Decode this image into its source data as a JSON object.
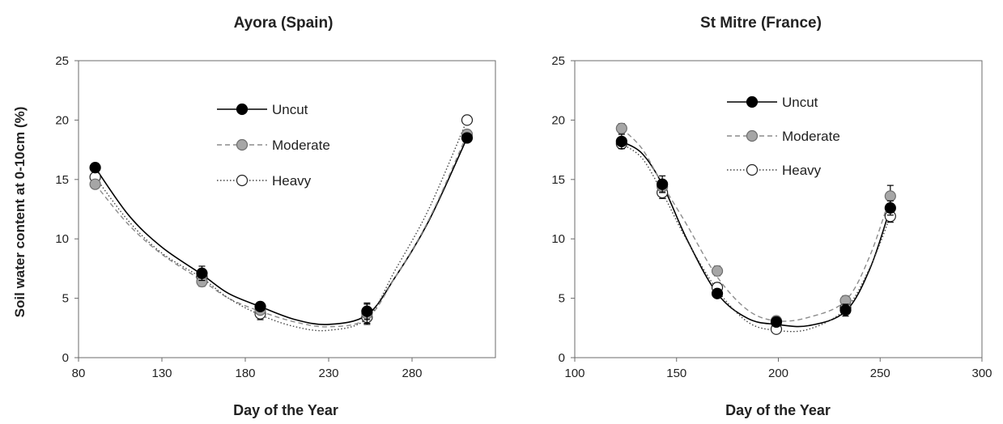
{
  "chart_data": [
    {
      "type": "line",
      "title": "Ayora (Spain)",
      "xlabel": "Day of the Year",
      "ylabel": "Soil water  content  at 0-10cm  (%)",
      "xlim": [
        80,
        330
      ],
      "ylim": [
        0,
        25
      ],
      "xticks": [
        80,
        130,
        180,
        230,
        280
      ],
      "yticks": [
        0,
        5,
        10,
        15,
        20,
        25
      ],
      "legend": "inside upper-center",
      "x": [
        90,
        154,
        189,
        253,
        313
      ],
      "series": [
        {
          "name": "Uncut",
          "style": "solid",
          "marker": "black-filled",
          "values": [
            16.0,
            7.1,
            4.3,
            3.9,
            18.5
          ],
          "error": [
            0.3,
            0.6,
            0.3,
            0.7,
            0.3
          ]
        },
        {
          "name": "Moderate",
          "style": "dashed",
          "marker": "grey-filled",
          "values": [
            14.6,
            6.4,
            4.0,
            3.7,
            18.8
          ],
          "error": [
            0.3,
            0.4,
            0.3,
            0.8,
            0.3
          ]
        },
        {
          "name": "Heavy",
          "style": "dotted",
          "marker": "white-open",
          "values": [
            15.2,
            6.8,
            3.7,
            3.4,
            20.0
          ],
          "error": [
            0.3,
            0.4,
            0.5,
            0.6,
            0.3
          ]
        }
      ],
      "curves": {
        "Uncut": [
          [
            90,
            16.0
          ],
          [
            110,
            12.0
          ],
          [
            130,
            9.3
          ],
          [
            154,
            7.0
          ],
          [
            170,
            5.4
          ],
          [
            189,
            4.3
          ],
          [
            210,
            3.2
          ],
          [
            230,
            2.8
          ],
          [
            253,
            3.6
          ],
          [
            270,
            6.8
          ],
          [
            290,
            11.5
          ],
          [
            313,
            18.5
          ]
        ],
        "Moderate": [
          [
            90,
            14.6
          ],
          [
            110,
            11.2
          ],
          [
            130,
            8.7
          ],
          [
            154,
            6.5
          ],
          [
            170,
            5.0
          ],
          [
            189,
            3.9
          ],
          [
            210,
            3.0
          ],
          [
            230,
            2.6
          ],
          [
            253,
            3.3
          ],
          [
            270,
            6.8
          ],
          [
            290,
            11.6
          ],
          [
            313,
            18.8
          ]
        ],
        "Heavy": [
          [
            90,
            15.2
          ],
          [
            110,
            11.5
          ],
          [
            130,
            8.8
          ],
          [
            154,
            6.7
          ],
          [
            170,
            5.0
          ],
          [
            189,
            3.6
          ],
          [
            210,
            2.6
          ],
          [
            230,
            2.3
          ],
          [
            253,
            3.3
          ],
          [
            270,
            7.4
          ],
          [
            290,
            12.5
          ],
          [
            313,
            20.0
          ]
        ]
      }
    },
    {
      "type": "line",
      "title": "St Mitre (France)",
      "xlabel": "Day of the Year",
      "ylabel": "",
      "xlim": [
        100,
        300
      ],
      "ylim": [
        0,
        25
      ],
      "xticks": [
        100,
        150,
        200,
        250,
        300
      ],
      "yticks": [
        0,
        5,
        10,
        15,
        20,
        25
      ],
      "legend": "inside upper-center",
      "x": [
        123,
        143,
        170,
        199,
        233,
        255
      ],
      "series": [
        {
          "name": "Uncut",
          "style": "solid",
          "marker": "black-filled",
          "values": [
            18.2,
            14.6,
            5.4,
            3.0,
            4.0,
            12.6
          ],
          "error": [
            0.6,
            0.7,
            0.3,
            0.3,
            0.5,
            0.6
          ]
        },
        {
          "name": "Moderate",
          "style": "dashed",
          "marker": "grey-filled",
          "values": [
            19.3,
            14.4,
            7.3,
            3.1,
            4.8,
            13.6
          ],
          "error": [
            0.4,
            0.5,
            0.4,
            0.3,
            0.4,
            0.9
          ]
        },
        {
          "name": "Heavy",
          "style": "dotted",
          "marker": "white-open",
          "values": [
            18.0,
            13.9,
            5.9,
            2.4,
            4.2,
            11.9
          ],
          "error": [
            0.4,
            0.5,
            0.4,
            0.3,
            0.4,
            0.5
          ]
        }
      ],
      "curves": {
        "Uncut": [
          [
            123,
            18.2
          ],
          [
            133,
            17.2
          ],
          [
            143,
            14.6
          ],
          [
            155,
            10.0
          ],
          [
            170,
            5.4
          ],
          [
            185,
            3.3
          ],
          [
            199,
            2.8
          ],
          [
            215,
            2.7
          ],
          [
            233,
            3.9
          ],
          [
            245,
            7.5
          ],
          [
            255,
            12.6
          ]
        ],
        "Moderate": [
          [
            123,
            19.3
          ],
          [
            133,
            17.6
          ],
          [
            143,
            14.6
          ],
          [
            155,
            11.2
          ],
          [
            170,
            6.8
          ],
          [
            185,
            4.0
          ],
          [
            199,
            3.1
          ],
          [
            215,
            3.4
          ],
          [
            233,
            4.8
          ],
          [
            245,
            8.6
          ],
          [
            255,
            13.6
          ]
        ],
        "Heavy": [
          [
            123,
            18.0
          ],
          [
            133,
            16.8
          ],
          [
            143,
            13.9
          ],
          [
            155,
            9.9
          ],
          [
            170,
            5.7
          ],
          [
            185,
            3.0
          ],
          [
            199,
            2.3
          ],
          [
            215,
            2.4
          ],
          [
            233,
            4.1
          ],
          [
            245,
            7.6
          ],
          [
            255,
            11.9
          ]
        ]
      }
    }
  ],
  "colors": {
    "uncut": "#000000",
    "moderate": "#9e9e9e",
    "heavy": "#ffffff",
    "axis": "#555555"
  }
}
